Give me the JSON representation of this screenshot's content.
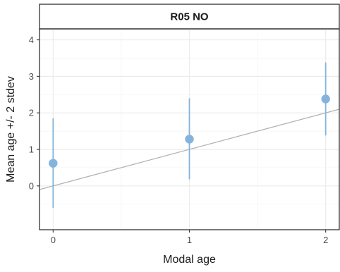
{
  "chart_data": {
    "type": "scatter",
    "facet_title": "R05 NO",
    "xlabel": "Modal age",
    "ylabel": "Mean age +/- 2 stdev",
    "xlim": [
      -0.1,
      2.1
    ],
    "ylim": [
      -1.2,
      4.3
    ],
    "x_ticks": [
      0,
      1,
      2
    ],
    "y_ticks": [
      0,
      1,
      2,
      3,
      4
    ],
    "grid": true,
    "points": [
      {
        "x": 0,
        "y": 0.62,
        "lower": -0.6,
        "upper": 1.85
      },
      {
        "x": 1,
        "y": 1.28,
        "lower": 0.18,
        "upper": 2.4
      },
      {
        "x": 2,
        "y": 2.38,
        "lower": 1.38,
        "upper": 3.38
      }
    ],
    "reference_line": {
      "type": "identity",
      "intercept": 0,
      "slope": 1
    },
    "colors": {
      "point": "#84b4dc",
      "errorbar": "#84b4dc",
      "reference_line": "#b3b3b3",
      "grid": "#ebebeb",
      "strip_fill": "#ffffff",
      "border": "#333333"
    }
  }
}
